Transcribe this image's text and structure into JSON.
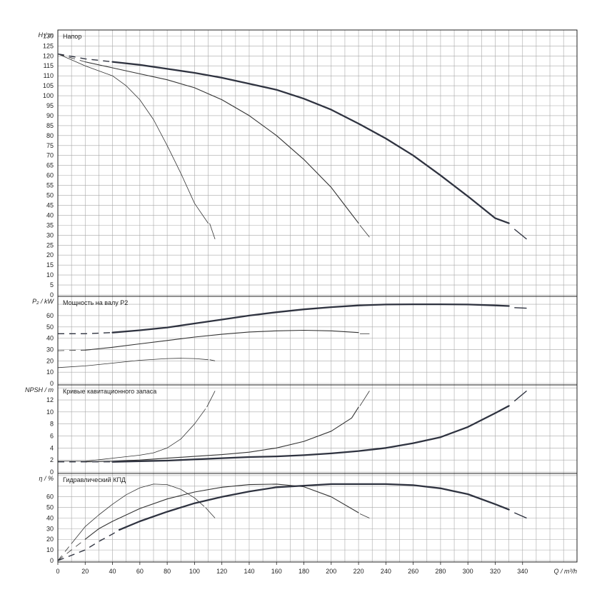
{
  "chart_data": {
    "type": "line",
    "x": {
      "label": "Q / m³/h",
      "range": [
        0,
        380
      ],
      "ticks": [
        0,
        20,
        40,
        60,
        80,
        100,
        120,
        140,
        160,
        180,
        200,
        220,
        240,
        260,
        280,
        300,
        320,
        340
      ]
    },
    "grid": true,
    "panels": [
      {
        "id": "head",
        "title": "Напор",
        "ylabel": "H / m",
        "ylim": [
          0,
          133
        ],
        "yticks": [
          0,
          5,
          10,
          15,
          20,
          25,
          30,
          35,
          40,
          45,
          50,
          55,
          60,
          65,
          70,
          75,
          80,
          85,
          90,
          95,
          100,
          105,
          110,
          115,
          120,
          125,
          130
        ],
        "series": [
          {
            "weight": "thin",
            "solid": [
              [
                0,
                121
              ],
              [
                10,
                118
              ],
              [
                20,
                115
              ],
              [
                30,
                112.5
              ],
              [
                40,
                110
              ],
              [
                50,
                105
              ],
              [
                60,
                98
              ],
              [
                70,
                88
              ],
              [
                80,
                75
              ],
              [
                90,
                61
              ],
              [
                100,
                46
              ],
              [
                110,
                36
              ]
            ],
            "dashed": [
              [
                0,
                121
              ],
              [
                5,
                120
              ],
              [
                10,
                119
              ]
            ],
            "tail": [
              [
                111,
                36
              ],
              [
                115,
                28
              ]
            ]
          },
          {
            "weight": "medium",
            "solid": [
              [
                20,
                117
              ],
              [
                40,
                114
              ],
              [
                60,
                111
              ],
              [
                80,
                108
              ],
              [
                100,
                104
              ],
              [
                120,
                98
              ],
              [
                140,
                90
              ],
              [
                160,
                80
              ],
              [
                180,
                68
              ],
              [
                200,
                54
              ],
              [
                210,
                45
              ],
              [
                220,
                36
              ]
            ],
            "dashed": [
              [
                0,
                121
              ],
              [
                10,
                119
              ],
              [
                20,
                117
              ]
            ],
            "tail": [
              [
                221,
                35
              ],
              [
                228,
                29
              ]
            ]
          },
          {
            "weight": "thick",
            "solid": [
              [
                40,
                117
              ],
              [
                60,
                115.5
              ],
              [
                80,
                113.5
              ],
              [
                100,
                111.5
              ],
              [
                120,
                109
              ],
              [
                140,
                106
              ],
              [
                160,
                103
              ],
              [
                180,
                98.5
              ],
              [
                200,
                93
              ],
              [
                220,
                86
              ],
              [
                240,
                78.5
              ],
              [
                260,
                70
              ],
              [
                280,
                60
              ],
              [
                300,
                49.5
              ],
              [
                320,
                38.5
              ],
              [
                330,
                36
              ]
            ],
            "dashed": [
              [
                0,
                121
              ],
              [
                20,
                118.5
              ],
              [
                40,
                117
              ]
            ],
            "tail": [
              [
                334,
                33
              ],
              [
                343,
                28
              ]
            ]
          }
        ]
      },
      {
        "id": "power",
        "title": "Мощность на валу P2",
        "ylabel": "P₂ / kW",
        "ylim": [
          0,
          77
        ],
        "yticks": [
          0,
          10,
          20,
          30,
          40,
          50,
          60
        ],
        "series": [
          {
            "weight": "thin",
            "solid": [
              [
                0,
                14
              ],
              [
                20,
                15.5
              ],
              [
                40,
                18
              ],
              [
                60,
                20.5
              ],
              [
                80,
                22
              ],
              [
                90,
                22.3
              ],
              [
                100,
                22
              ],
              [
                110,
                21
              ]
            ],
            "dashed": [],
            "tail": [
              [
                111,
                21
              ],
              [
                115,
                20
              ]
            ]
          },
          {
            "weight": "medium",
            "solid": [
              [
                20,
                29.5
              ],
              [
                40,
                32
              ],
              [
                60,
                35
              ],
              [
                80,
                38
              ],
              [
                100,
                41
              ],
              [
                120,
                43.5
              ],
              [
                140,
                45.5
              ],
              [
                160,
                46.5
              ],
              [
                180,
                47
              ],
              [
                200,
                46.5
              ],
              [
                220,
                45
              ]
            ],
            "dashed": [
              [
                0,
                29
              ],
              [
                20,
                29.5
              ]
            ],
            "tail": [
              [
                221,
                44
              ],
              [
                228,
                44
              ]
            ]
          },
          {
            "weight": "thick",
            "solid": [
              [
                40,
                45
              ],
              [
                60,
                47
              ],
              [
                80,
                49.5
              ],
              [
                100,
                53
              ],
              [
                120,
                56.5
              ],
              [
                140,
                60
              ],
              [
                160,
                63
              ],
              [
                180,
                65.5
              ],
              [
                200,
                67.5
              ],
              [
                220,
                69
              ],
              [
                240,
                69.8
              ],
              [
                260,
                70
              ],
              [
                280,
                70
              ],
              [
                300,
                69.8
              ],
              [
                320,
                69
              ],
              [
                330,
                68.5
              ]
            ],
            "dashed": [
              [
                0,
                44
              ],
              [
                20,
                44
              ],
              [
                40,
                45
              ]
            ],
            "tail": [
              [
                334,
                67
              ],
              [
                343,
                66.5
              ]
            ]
          }
        ]
      },
      {
        "id": "npsh",
        "title": "Кривые кавитационного запаса",
        "ylabel": "NPSH / m",
        "ylim": [
          0,
          14.5
        ],
        "yticks": [
          0,
          2,
          4,
          6,
          8,
          10,
          12
        ],
        "series": [
          {
            "weight": "thin",
            "solid": [
              [
                0,
                1.8
              ],
              [
                20,
                1.8
              ],
              [
                40,
                2.3
              ],
              [
                60,
                2.8
              ],
              [
                70,
                3.2
              ],
              [
                80,
                4
              ],
              [
                90,
                5.5
              ],
              [
                100,
                8
              ],
              [
                108,
                10.5
              ]
            ],
            "dashed": [],
            "tail": [
              [
                109,
                10.8
              ],
              [
                115,
                13.5
              ]
            ]
          },
          {
            "weight": "medium",
            "solid": [
              [
                20,
                1.7
              ],
              [
                40,
                1.8
              ],
              [
                60,
                2
              ],
              [
                80,
                2.3
              ],
              [
                100,
                2.6
              ],
              [
                120,
                2.9
              ],
              [
                140,
                3.3
              ],
              [
                160,
                4
              ],
              [
                180,
                5.1
              ],
              [
                200,
                6.8
              ],
              [
                215,
                9
              ],
              [
                220,
                10.8
              ]
            ],
            "dashed": [
              [
                0,
                1.7
              ],
              [
                20,
                1.7
              ]
            ],
            "tail": [
              [
                221,
                11
              ],
              [
                228,
                13.5
              ]
            ]
          },
          {
            "weight": "thick",
            "solid": [
              [
                40,
                1.7
              ],
              [
                60,
                1.8
              ],
              [
                80,
                1.9
              ],
              [
                100,
                2.1
              ],
              [
                120,
                2.3
              ],
              [
                140,
                2.5
              ],
              [
                160,
                2.6
              ],
              [
                180,
                2.8
              ],
              [
                200,
                3.1
              ],
              [
                220,
                3.5
              ],
              [
                240,
                4
              ],
              [
                260,
                4.8
              ],
              [
                280,
                5.8
              ],
              [
                300,
                7.5
              ],
              [
                320,
                9.8
              ],
              [
                330,
                11
              ]
            ],
            "dashed": [
              [
                0,
                1.7
              ],
              [
                20,
                1.7
              ],
              [
                40,
                1.7
              ]
            ],
            "tail": [
              [
                334,
                11.8
              ],
              [
                343,
                13.5
              ]
            ]
          }
        ]
      },
      {
        "id": "eff",
        "title": "Гидравлический КПД",
        "ylabel": "η / %",
        "ylim": [
          0,
          82
        ],
        "yticks": [
          0,
          10,
          20,
          30,
          40,
          50,
          60
        ],
        "series": [
          {
            "weight": "thin",
            "solid": [
              [
                10,
                16
              ],
              [
                20,
                32
              ],
              [
                30,
                43
              ],
              [
                40,
                53
              ],
              [
                50,
                62
              ],
              [
                60,
                68.5
              ],
              [
                70,
                72
              ],
              [
                80,
                71.5
              ],
              [
                90,
                67
              ],
              [
                100,
                59
              ],
              [
                107,
                51
              ]
            ],
            "dashed": [
              [
                0,
                0
              ],
              [
                5,
                8
              ],
              [
                10,
                16
              ]
            ],
            "tail": [
              [
                108,
                50
              ],
              [
                115,
                40
              ]
            ]
          },
          {
            "weight": "medium",
            "solid": [
              [
                20,
                20
              ],
              [
                30,
                30
              ],
              [
                40,
                37
              ],
              [
                60,
                49
              ],
              [
                80,
                58
              ],
              [
                100,
                64.5
              ],
              [
                120,
                69
              ],
              [
                140,
                71.5
              ],
              [
                160,
                72
              ],
              [
                180,
                69.5
              ],
              [
                200,
                60
              ],
              [
                220,
                45
              ]
            ],
            "dashed": [
              [
                0,
                0
              ],
              [
                10,
                10
              ],
              [
                20,
                20
              ]
            ],
            "tail": [
              [
                221,
                44
              ],
              [
                228,
                40
              ]
            ]
          },
          {
            "weight": "thick",
            "solid": [
              [
                45,
                29
              ],
              [
                60,
                37
              ],
              [
                80,
                46
              ],
              [
                100,
                54
              ],
              [
                120,
                60
              ],
              [
                140,
                65
              ],
              [
                160,
                69
              ],
              [
                180,
                70.5
              ],
              [
                200,
                72
              ],
              [
                220,
                72
              ],
              [
                240,
                72
              ],
              [
                260,
                71
              ],
              [
                280,
                68
              ],
              [
                300,
                62.5
              ],
              [
                320,
                53
              ],
              [
                330,
                48
              ]
            ],
            "dashed": [
              [
                0,
                0
              ],
              [
                10,
                5
              ],
              [
                20,
                10
              ],
              [
                30,
                18
              ],
              [
                40,
                25
              ],
              [
                45,
                29
              ]
            ],
            "tail": [
              [
                334,
                45
              ],
              [
                343,
                40
              ]
            ]
          }
        ]
      }
    ]
  }
}
